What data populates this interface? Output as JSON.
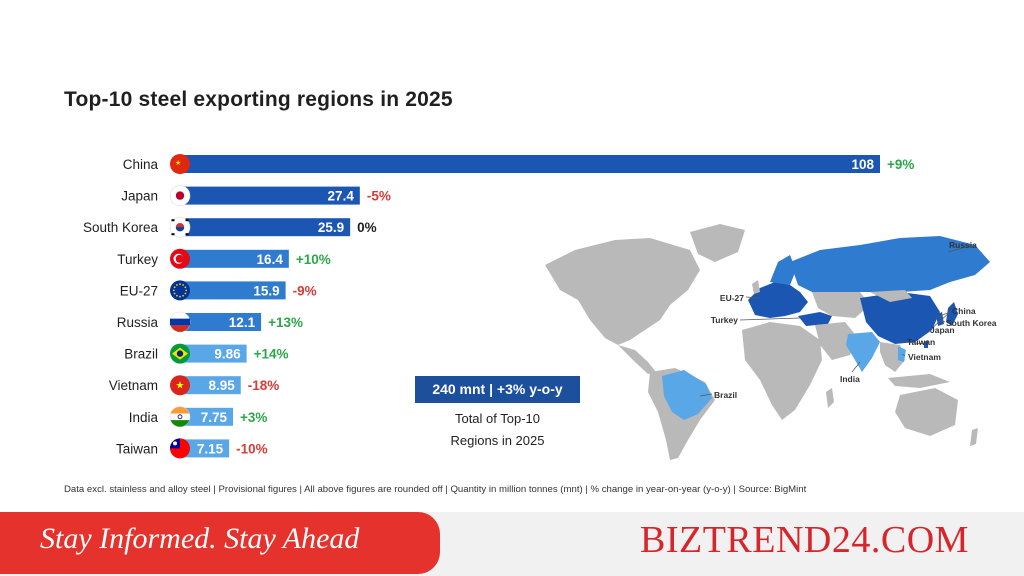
{
  "title": "Top-10 steel exporting regions in 2025",
  "total": {
    "box": "240 mnt | +3% y-o-y",
    "caption_line1": "Total of Top-10",
    "caption_line2": "Regions in 2025"
  },
  "footnote": "Data excl. stainless and alloy steel | Provisional figures | All above figures are rounded off | Quantity in million tonnes (mnt) | % change in year-on-year (y-o-y) | Source: BigMint",
  "banner": {
    "text": "Stay Informed. Stay Ahead"
  },
  "brand": {
    "text": "BIZTREND24.COM"
  },
  "colors": {
    "bar_dark": "#1c56b3",
    "bar_mid": "#2f7bd0",
    "bar_light": "#5aa7e8",
    "positive": "#2aa84a",
    "negative": "#d93b36",
    "neutral": "#1f1f1f",
    "map_highlight_dark": "#1c56b3",
    "map_highlight_light": "#5aa7e8",
    "map_base": "#b7b7b7",
    "banner": "#e5322d",
    "brand": "#d7262b"
  },
  "chart_data": {
    "type": "bar",
    "orientation": "horizontal",
    "title": "Top-10 steel exporting regions in 2025",
    "unit": "mnt",
    "categories": [
      "China",
      "Japan",
      "South Korea",
      "Turkey",
      "EU-27",
      "Russia",
      "Brazil",
      "Vietnam",
      "India",
      "Taiwan"
    ],
    "values": [
      108,
      27.4,
      25.9,
      16.4,
      15.9,
      12.1,
      9.86,
      8.95,
      7.75,
      7.15
    ],
    "value_labels": [
      "108",
      "27.4",
      "25.9",
      "16.4",
      "15.9",
      "12.1",
      "9.86",
      "8.95",
      "7.75",
      "7.15"
    ],
    "changes": [
      "+9%",
      "-5%",
      "0%",
      "+10%",
      "-9%",
      "+13%",
      "+14%",
      "-18%",
      "+3%",
      "-10%"
    ],
    "flags": [
      "china-flag-icon",
      "japan-flag-icon",
      "south-korea-flag-icon",
      "turkey-flag-icon",
      "eu-flag-icon",
      "russia-flag-icon",
      "brazil-flag-icon",
      "vietnam-flag-icon",
      "india-flag-icon",
      "taiwan-flag-icon"
    ],
    "xlim": [
      0,
      108
    ],
    "grid": false,
    "legend": "none"
  },
  "map_labels": [
    "Russia",
    "EU-27",
    "China",
    "South Korea",
    "Japan",
    "Turkey",
    "Taiwan",
    "Vietnam",
    "India",
    "Brazil"
  ]
}
